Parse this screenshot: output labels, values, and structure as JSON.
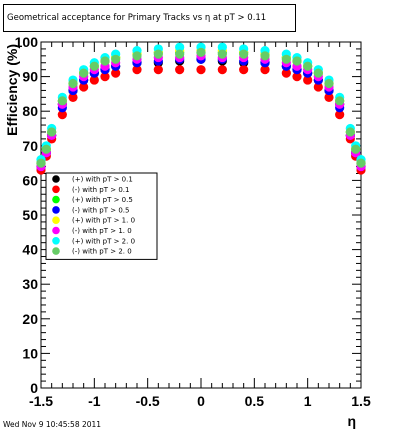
{
  "chart_data": {
    "type": "scatter",
    "title": "Geometrical acceptance for Primary Tracks vs   η at pT > 0.11",
    "xlabel": "η",
    "ylabel": "Efficiency (%)",
    "xlim": [
      -1.5,
      1.5
    ],
    "ylim": [
      0,
      100
    ],
    "x_ticks": [
      "-1.5",
      "-1",
      "-0.5",
      "0",
      "0.5",
      "1",
      "1.5"
    ],
    "y_ticks": [
      "0",
      "10",
      "20",
      "30",
      "40",
      "50",
      "60",
      "70",
      "80",
      "90",
      "100"
    ],
    "grid": false,
    "legend_position": "middle-left",
    "series": [
      {
        "name": "(+) with pT > 0.1",
        "color": "#000000",
        "x": [
          -1.5,
          -1.45,
          -1.4,
          -1.3,
          -1.2,
          -1.1,
          -1.0,
          -0.9,
          -0.8,
          -0.6,
          -0.4,
          -0.2,
          0.0,
          0.2,
          0.4,
          0.6,
          0.8,
          0.9,
          1.0,
          1.1,
          1.2,
          1.3,
          1.4,
          1.45,
          1.5
        ],
        "y": [
          64,
          68,
          73,
          82,
          86,
          89,
          91,
          92,
          93,
          94,
          94,
          94.5,
          95,
          94.5,
          94,
          94,
          93,
          92,
          91,
          89,
          86,
          82,
          73,
          68,
          64
        ]
      },
      {
        "name": "(-) with pT > 0.1",
        "color": "#ff0000",
        "x": [
          -1.5,
          -1.45,
          -1.4,
          -1.3,
          -1.2,
          -1.1,
          -1.0,
          -0.9,
          -0.8,
          -0.6,
          -0.4,
          -0.2,
          0.0,
          0.2,
          0.4,
          0.6,
          0.8,
          0.9,
          1.0,
          1.1,
          1.2,
          1.3,
          1.4,
          1.45,
          1.5
        ],
        "y": [
          63,
          67,
          72,
          79,
          84,
          87,
          89,
          90,
          91,
          92,
          92,
          92,
          92,
          92,
          92,
          92,
          91,
          90,
          89,
          87,
          84,
          79,
          72,
          67,
          63
        ]
      },
      {
        "name": "(+) with pT > 0.5",
        "color": "#00ff00",
        "x": [
          -1.5,
          -1.45,
          -1.4,
          -1.3,
          -1.2,
          -1.1,
          -1.0,
          -0.9,
          -0.8,
          -0.6,
          -0.4,
          -0.2,
          0.0,
          0.2,
          0.4,
          0.6,
          0.8,
          0.9,
          1.0,
          1.1,
          1.2,
          1.3,
          1.4,
          1.45,
          1.5
        ],
        "y": [
          65,
          69,
          74,
          83,
          88,
          91,
          93,
          94.5,
          95.5,
          96.5,
          97,
          97,
          97,
          97,
          97,
          96.5,
          95.5,
          94.5,
          93,
          91,
          88,
          83,
          74,
          69,
          65
        ]
      },
      {
        "name": "(-) with pT > 0.5",
        "color": "#0000ff",
        "x": [
          -1.5,
          -1.45,
          -1.4,
          -1.3,
          -1.2,
          -1.1,
          -1.0,
          -0.9,
          -0.8,
          -0.6,
          -0.4,
          -0.2,
          0.0,
          0.2,
          0.4,
          0.6,
          0.8,
          0.9,
          1.0,
          1.1,
          1.2,
          1.3,
          1.4,
          1.45,
          1.5
        ],
        "y": [
          64,
          68,
          73,
          81,
          86,
          89,
          91,
          92,
          93,
          94,
          94.5,
          95,
          95,
          95,
          94.5,
          94,
          93,
          92,
          91,
          89,
          86,
          81,
          73,
          68,
          64
        ]
      },
      {
        "name": "(+) with pT > 1. 0",
        "color": "#ffff00",
        "x": [
          -1.5,
          -1.45,
          -1.4,
          -1.3,
          -1.2,
          -1.1,
          -1.0,
          -0.9,
          -0.8,
          -0.6,
          -0.4,
          -0.2,
          0.0,
          0.2,
          0.4,
          0.6,
          0.8,
          0.9,
          1.0,
          1.1,
          1.2,
          1.3,
          1.4,
          1.45,
          1.5
        ],
        "y": [
          65,
          69,
          74,
          83,
          88,
          91,
          93,
          94.5,
          95.5,
          96.5,
          97,
          97.5,
          97.5,
          97.5,
          97,
          96.5,
          95.5,
          94.5,
          93,
          91,
          88,
          83,
          74,
          69,
          65
        ]
      },
      {
        "name": "(-) with pT > 1. 0",
        "color": "#ff00ff",
        "x": [
          -1.5,
          -1.45,
          -1.4,
          -1.3,
          -1.2,
          -1.1,
          -1.0,
          -0.9,
          -0.8,
          -0.6,
          -0.4,
          -0.2,
          0.0,
          0.2,
          0.4,
          0.6,
          0.8,
          0.9,
          1.0,
          1.1,
          1.2,
          1.3,
          1.4,
          1.45,
          1.5
        ],
        "y": [
          64,
          68,
          73,
          82,
          87,
          90,
          92,
          93,
          94,
          95,
          95.5,
          95.5,
          96,
          95.5,
          95.5,
          95,
          94,
          93,
          92,
          90,
          87,
          82,
          73,
          68,
          64
        ]
      },
      {
        "name": "(+) with pT > 2. 0",
        "color": "#00ffff",
        "x": [
          -1.5,
          -1.45,
          -1.4,
          -1.3,
          -1.2,
          -1.1,
          -1.0,
          -0.9,
          -0.8,
          -0.6,
          -0.4,
          -0.2,
          0.0,
          0.2,
          0.4,
          0.6,
          0.8,
          0.9,
          1.0,
          1.1,
          1.2,
          1.3,
          1.4,
          1.45,
          1.5
        ],
        "y": [
          66,
          70,
          75,
          84,
          89,
          92,
          94,
          95.5,
          96.5,
          97.5,
          98,
          98.5,
          98.5,
          98.5,
          98,
          97.5,
          96.5,
          95.5,
          94,
          92,
          89,
          84,
          75,
          70,
          66
        ]
      },
      {
        "name": "(-) with pT > 2. 0",
        "color": "#66cc66",
        "x": [
          -1.5,
          -1.45,
          -1.4,
          -1.3,
          -1.2,
          -1.1,
          -1.0,
          -0.9,
          -0.8,
          -0.6,
          -0.4,
          -0.2,
          0.0,
          0.2,
          0.4,
          0.6,
          0.8,
          0.9,
          1.0,
          1.1,
          1.2,
          1.3,
          1.4,
          1.45,
          1.5
        ],
        "y": [
          65,
          69,
          74,
          83,
          88,
          91,
          93,
          94.5,
          95,
          96,
          96.5,
          96.5,
          97,
          96.5,
          96.5,
          96,
          95,
          94.5,
          93,
          91,
          88,
          83,
          74,
          69,
          65
        ]
      }
    ]
  },
  "footer": {
    "timestamp": "Wed Nov  9 10:45:58 2011"
  }
}
